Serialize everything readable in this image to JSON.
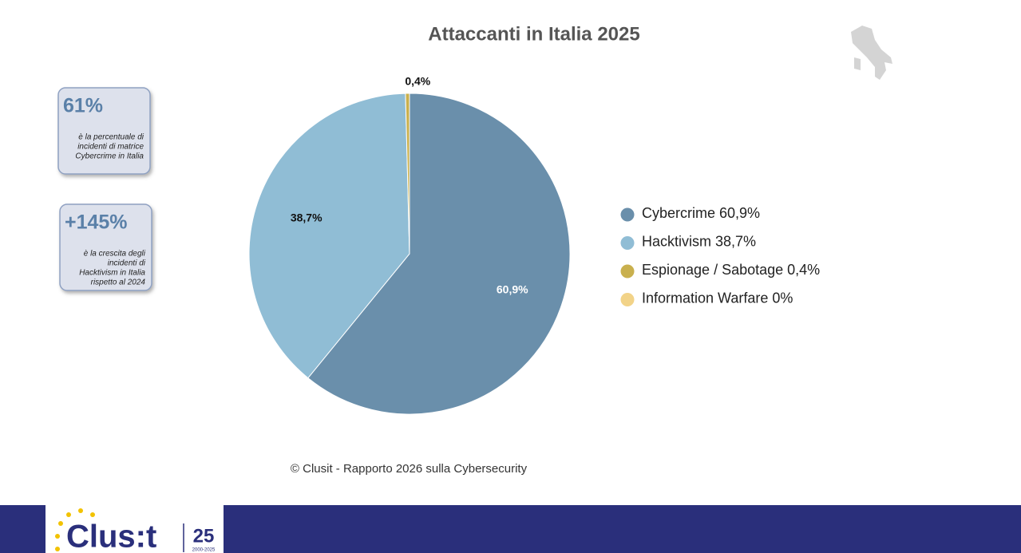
{
  "chart_data": {
    "type": "pie",
    "title": "Attaccanti in Italia 2025",
    "categories": [
      "Cybercrime 60,9%",
      "Hacktivism 38,7%",
      "Espionage / Sabotage 0,4%",
      "Information Warfare 0%"
    ],
    "values": [
      60.9,
      38.7,
      0.4,
      0
    ],
    "value_labels": [
      "60,9%",
      "38,7%",
      "0,4%",
      null
    ],
    "colors": [
      "#6a8fab",
      "#90bdd5",
      "#c9b04e",
      "#f2d388"
    ],
    "value_label_colors": [
      "#ffffff",
      "#111111",
      "#111111",
      null
    ],
    "legend": "right"
  },
  "stats": [
    {
      "value": "61%",
      "caption": [
        "è la percentuale di",
        "incidenti di matrice",
        "Cybercrime in Italia"
      ]
    },
    {
      "value": "+145%",
      "caption": [
        "è la crescita degli",
        "incidenti di",
        "Hacktivism in Italia",
        "rispetto al 2024"
      ]
    }
  ],
  "source": "© Clusit - Rapporto 2026 sulla Cybersecurity",
  "logo": {
    "name": "Clus:t",
    "badge": "25",
    "years": "2000-2025"
  }
}
